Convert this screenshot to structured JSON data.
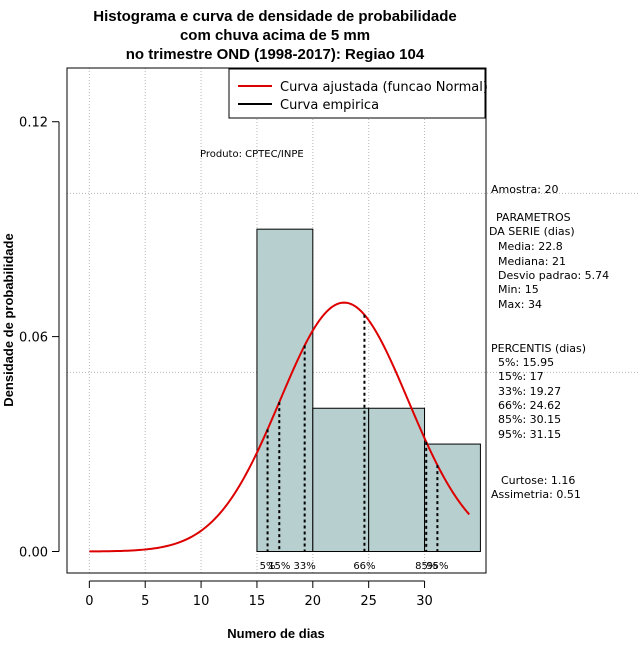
{
  "chart_data": {
    "type": "bar",
    "title_lines": [
      "Histograma e curva de densidade de probabilidade",
      "com chuva acima de 5 mm",
      "no trimestre OND (1998-2017): Regiao 104"
    ],
    "xlabel": "Numero de dias",
    "ylabel": "Densidade de probabilidade",
    "xlim": [
      -2,
      35.5
    ],
    "ylim": [
      -0.006,
      0.135
    ],
    "x_ticks": [
      0,
      5,
      10,
      15,
      20,
      25,
      30
    ],
    "y_ticks": [
      0.0,
      0.06,
      0.12
    ],
    "y_tick_labels": [
      "0.00",
      "0.06",
      "0.12"
    ],
    "grid": true,
    "grid_x": [
      0,
      5,
      10,
      15,
      20,
      25,
      30
    ],
    "grid_y": [
      0.05,
      0.1
    ],
    "histogram": {
      "bins": [
        {
          "x0": 15,
          "x1": 20,
          "density": 0.09
        },
        {
          "x0": 20,
          "x1": 25,
          "density": 0.04
        },
        {
          "x0": 25,
          "x1": 30,
          "density": 0.04
        },
        {
          "x0": 30,
          "x1": 35,
          "density": 0.03
        }
      ],
      "fill": "#b8cfcf",
      "stroke": "#000000"
    },
    "fitted_curve": {
      "name": "Curva ajustada (funcao Normal)",
      "distribution": "normal",
      "mean": 22.8,
      "sd": 5.74,
      "x_range": [
        0,
        34
      ],
      "color": "#dd0000"
    },
    "empirical_curve": {
      "name": "Curva empirica",
      "color": "#000000"
    },
    "percentile_markers": [
      {
        "label": "5%",
        "x": 15.95
      },
      {
        "label": "15%",
        "x": 17
      },
      {
        "label": "33%",
        "x": 19.27
      },
      {
        "label": "66%",
        "x": 24.62
      },
      {
        "label": "85%",
        "x": 30.15
      },
      {
        "label": "95%",
        "x": 31.15
      }
    ],
    "legend_position": "top-right",
    "annotation": "Produto: CPTEC/INPE",
    "stats_panel": {
      "amostra": "Amostra: 20",
      "parametros_title": "PARAMETROS",
      "parametros_subtitle": "DA SERIE (dias)",
      "parametros": [
        "Media: 22.8",
        "Mediana: 21",
        "Desvio padrao: 5.74",
        "Min: 15",
        "Max: 34"
      ],
      "percentis_title": "PERCENTIS (dias)",
      "percentis": [
        "5%: 15.95",
        "15%: 17",
        "33%: 19.27",
        "66%: 24.62",
        "85%: 30.15",
        "95%: 31.15"
      ],
      "curtose": "Curtose: 1.16",
      "assimetria": "Assimetria: 0.51"
    }
  }
}
